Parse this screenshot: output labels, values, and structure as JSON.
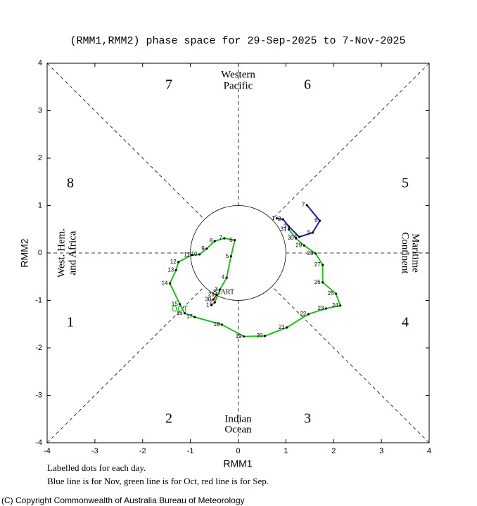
{
  "chart_data": {
    "type": "phase",
    "title": "(RMM1,RMM2) phase space for 29-Sep-2025 to  7-Nov-2025",
    "x_label": "RMM1",
    "y_label": "RMM2",
    "xlim": [
      -4,
      4
    ],
    "ylim": [
      -4,
      4
    ],
    "xticks": [
      -4,
      -3,
      -2,
      -1,
      0,
      1,
      2,
      3,
      4
    ],
    "yticks": [
      -4,
      -3,
      -2,
      -1,
      0,
      1,
      2,
      3,
      4
    ],
    "phase_labels": [
      "1",
      "2",
      "3",
      "4",
      "5",
      "6",
      "7",
      "8"
    ],
    "region_labels": {
      "top": [
        "Western",
        "Pacific"
      ],
      "bottom": [
        "Indian",
        "Ocean"
      ],
      "left": [
        "West. Hem.",
        "and Africa"
      ],
      "right": [
        "Maritime",
        "Continent"
      ]
    },
    "start_label": "START",
    "notes": [
      "Labelled dots for each day.",
      "Blue line is for Nov, green line is for Oct, red line is for Sep."
    ],
    "copyright": "(C) Copyright Commonwealth of Australia Bureau of Meteorology",
    "series": [
      {
        "name": "Sep",
        "color": "#ff0000",
        "days": [
          29,
          30
        ],
        "x": [
          -0.45,
          -0.52
        ],
        "y": [
          -0.88,
          -0.98
        ]
      },
      {
        "name": "Oct",
        "color": "#22bb22",
        "month_label": "OCT",
        "days": [
          1,
          2,
          3,
          4,
          5,
          6,
          7,
          8,
          9,
          10,
          11,
          12,
          13,
          14,
          15,
          16,
          17,
          18,
          19,
          20,
          21,
          22,
          23,
          24,
          25,
          26,
          27,
          28,
          29,
          30,
          31
        ],
        "x": [
          -0.56,
          -0.49,
          -0.38,
          -0.24,
          -0.15,
          -0.07,
          -0.29,
          -0.49,
          -0.66,
          -0.81,
          -0.97,
          -1.25,
          -1.3,
          -1.43,
          -1.22,
          -1.12,
          -0.91,
          -0.34,
          0.12,
          0.56,
          1.02,
          1.47,
          1.84,
          2.14,
          2.05,
          1.77,
          1.77,
          1.62,
          1.38,
          1.21,
          1.06
        ],
        "y": [
          -1.1,
          -1.04,
          -0.77,
          -0.52,
          -0.07,
          0.27,
          0.31,
          0.25,
          0.09,
          -0.03,
          -0.04,
          -0.19,
          -0.36,
          -0.64,
          -1.08,
          -1.27,
          -1.35,
          -1.51,
          -1.76,
          -1.75,
          -1.57,
          -1.29,
          -1.17,
          -1.11,
          -0.86,
          -0.62,
          -0.25,
          -0.01,
          0.16,
          0.31,
          0.5
        ]
      },
      {
        "name": "Nov",
        "color": "#1a1aaa",
        "days": [
          1,
          2,
          3,
          4,
          5,
          6,
          7
        ],
        "x": [
          0.81,
          0.94,
          1.06,
          1.28,
          1.56,
          1.71,
          1.44
        ],
        "y": [
          0.73,
          0.71,
          0.56,
          0.34,
          0.43,
          0.68,
          1.01
        ]
      }
    ]
  }
}
